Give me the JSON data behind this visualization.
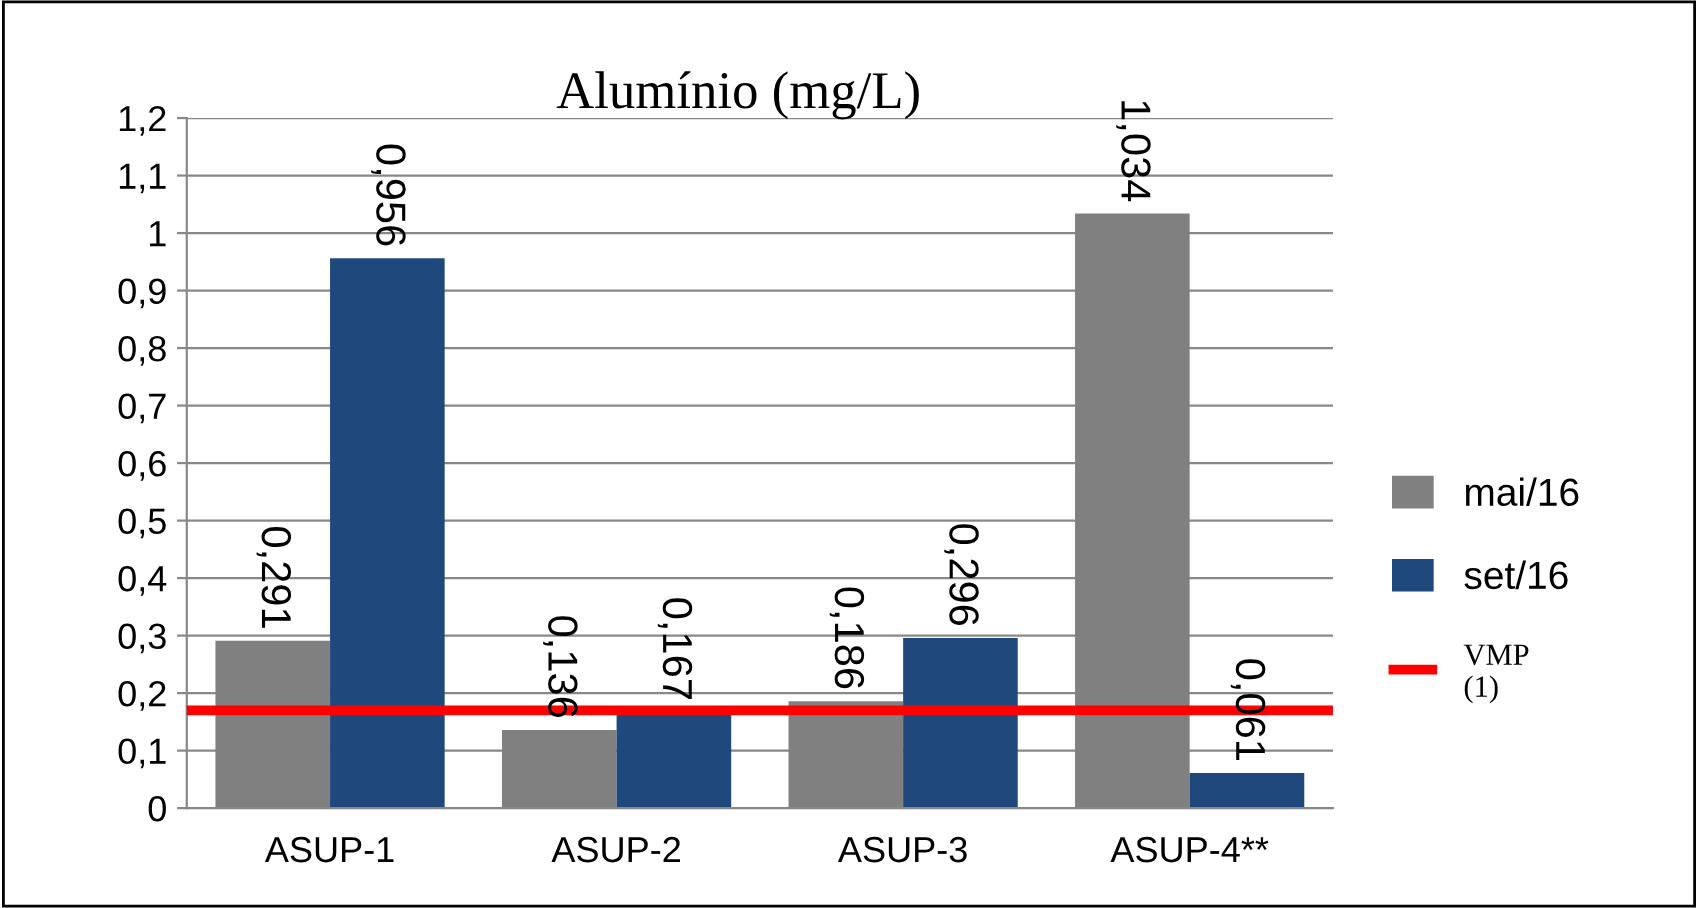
{
  "chart_data": {
    "type": "bar",
    "title": "Alumínio (mg/L)",
    "categories": [
      "ASUP-1",
      "ASUP-2",
      "ASUP-3",
      "ASUP-4**"
    ],
    "series": [
      {
        "name": "mai/16",
        "color": "#808080",
        "values": [
          0.291,
          0.136,
          0.186,
          1.034
        ],
        "value_labels": [
          "0,291",
          "0,136",
          "0,186",
          "1,034"
        ]
      },
      {
        "name": "set/16",
        "color": "#1f497d",
        "values": [
          0.956,
          0.167,
          0.296,
          0.061
        ],
        "value_labels": [
          "0,956",
          "0,167",
          "0,296",
          "0,061"
        ]
      }
    ],
    "ylim": [
      0,
      1.2
    ],
    "yticks": [
      0,
      {
        "value": 0.1,
        "label": "0,1"
      },
      {
        "value": 0.2,
        "label": "0,2"
      },
      {
        "value": 0.3,
        "label": "0,3"
      },
      {
        "value": 0.4,
        "label": "0,4"
      },
      {
        "value": 0.5,
        "label": "0,5"
      },
      {
        "value": 0.6,
        "label": "0,6"
      },
      {
        "value": 0.7,
        "label": "0,7"
      },
      {
        "value": 0.8,
        "label": "0,8"
      },
      {
        "value": 0.9,
        "label": "0,9"
      },
      1,
      {
        "value": 1.1,
        "label": "1,1"
      },
      {
        "value": 1.2,
        "label": "1,2"
      }
    ],
    "ref_lines": [
      {
        "axis": "y",
        "value": 0.17,
        "label": "VMP\n(1)",
        "color": "#ff0000"
      }
    ],
    "grid": "y",
    "legend": "right"
  }
}
